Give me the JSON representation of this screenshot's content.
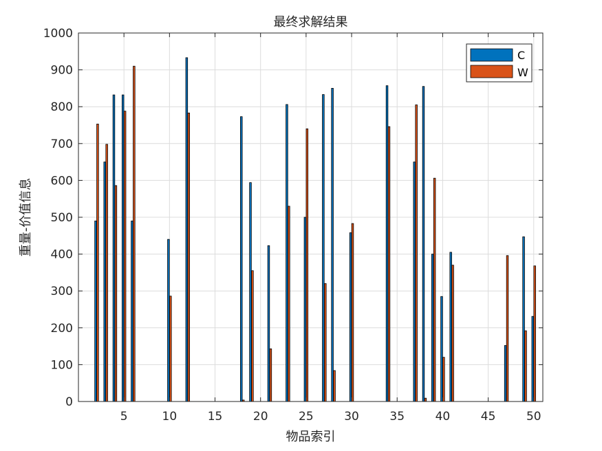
{
  "chart_data": {
    "type": "bar",
    "title": "最终求解结果",
    "xlabel": "物品索引",
    "ylabel": "重量-价值信息",
    "xlim": [
      0,
      51
    ],
    "ylim": [
      0,
      1000
    ],
    "xticks": [
      5,
      10,
      15,
      20,
      25,
      30,
      35,
      40,
      45,
      50
    ],
    "yticks": [
      0,
      100,
      200,
      300,
      400,
      500,
      600,
      700,
      800,
      900,
      1000
    ],
    "grid": true,
    "legend_position": "top-right",
    "x": [
      1,
      2,
      3,
      4,
      5,
      6,
      7,
      8,
      9,
      10,
      11,
      12,
      13,
      14,
      15,
      16,
      17,
      18,
      19,
      20,
      21,
      22,
      23,
      24,
      25,
      26,
      27,
      28,
      29,
      30,
      31,
      32,
      33,
      34,
      35,
      36,
      37,
      38,
      39,
      40,
      41,
      42,
      43,
      44,
      45,
      46,
      47,
      48,
      49,
      50
    ],
    "series": [
      {
        "name": "C",
        "color": "#0072BD",
        "values": [
          0,
          490,
          650,
          832,
          832,
          490,
          0,
          0,
          0,
          440,
          0,
          933,
          0,
          0,
          0,
          0,
          0,
          773,
          594,
          0,
          423,
          0,
          806,
          0,
          500,
          0,
          833,
          850,
          0,
          458,
          0,
          0,
          0,
          857,
          0,
          0,
          650,
          855,
          400,
          285,
          405,
          0,
          0,
          0,
          0,
          0,
          152,
          0,
          447,
          231
        ]
      },
      {
        "name": "W",
        "color": "#D95319",
        "values": [
          0,
          753,
          698,
          586,
          788,
          910,
          0,
          0,
          0,
          286,
          0,
          783,
          0,
          0,
          0,
          0,
          0,
          4,
          355,
          0,
          143,
          0,
          530,
          0,
          740,
          0,
          320,
          84,
          0,
          483,
          0,
          0,
          0,
          746,
          0,
          0,
          805,
          9,
          606,
          120,
          370,
          0,
          0,
          0,
          0,
          0,
          396,
          0,
          192,
          368
        ]
      }
    ]
  }
}
